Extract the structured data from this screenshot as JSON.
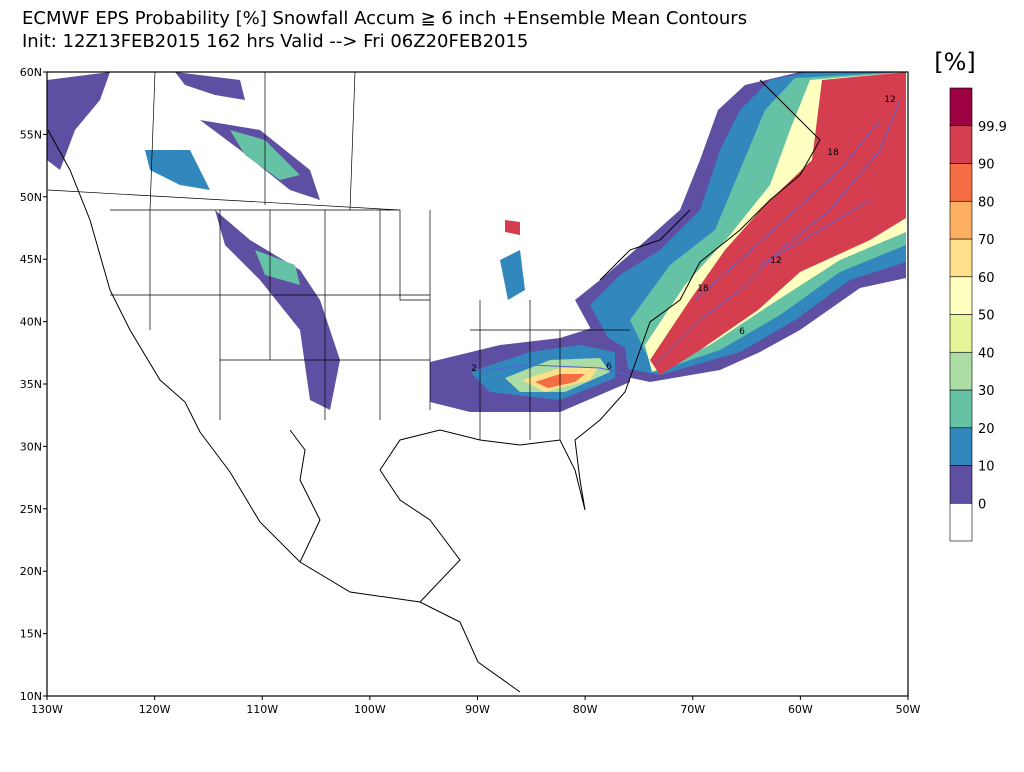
{
  "header": {
    "title": "ECMWF EPS Probability [%] Snowfall Accum ≧ 6 inch   +Ensemble Mean Contours",
    "subtitle": "Init: 12Z13FEB2015   162 hrs Valid --> Fri 06Z20FEB2015"
  },
  "map": {
    "lonlim": [
      -130,
      -50
    ],
    "latlim": [
      10,
      60
    ],
    "lon_ticks": [
      {
        "value": -130,
        "label": "130W"
      },
      {
        "value": -120,
        "label": "120W"
      },
      {
        "value": -110,
        "label": "110W"
      },
      {
        "value": -100,
        "label": "100W"
      },
      {
        "value": -90,
        "label": "90W"
      },
      {
        "value": -80,
        "label": "80W"
      },
      {
        "value": -70,
        "label": "70W"
      },
      {
        "value": -60,
        "label": "60W"
      },
      {
        "value": -50,
        "label": "50W"
      }
    ],
    "lat_ticks": [
      {
        "value": 10,
        "label": "10N"
      },
      {
        "value": 15,
        "label": "15N"
      },
      {
        "value": 20,
        "label": "20N"
      },
      {
        "value": 25,
        "label": "25N"
      },
      {
        "value": 30,
        "label": "30N"
      },
      {
        "value": 35,
        "label": "35N"
      },
      {
        "value": 40,
        "label": "40N"
      },
      {
        "value": 45,
        "label": "45N"
      },
      {
        "value": 50,
        "label": "50N"
      },
      {
        "value": 55,
        "label": "55N"
      },
      {
        "value": 60,
        "label": "60N"
      }
    ],
    "contour_labels": [
      "12",
      "18",
      "12",
      "18",
      "6",
      "6",
      "2"
    ]
  },
  "colorbar": {
    "unit": "[%]",
    "levels": [
      "0",
      "10",
      "20",
      "30",
      "40",
      "50",
      "60",
      "70",
      "80",
      "90",
      "99.9"
    ],
    "colors": [
      "#ffffff",
      "#5e4fa2",
      "#3288bd",
      "#66c2a5",
      "#abdda4",
      "#e6f598",
      "#ffffbf",
      "#fee08b",
      "#fdae61",
      "#f46d43",
      "#d53e4f",
      "#9e0142"
    ]
  }
}
